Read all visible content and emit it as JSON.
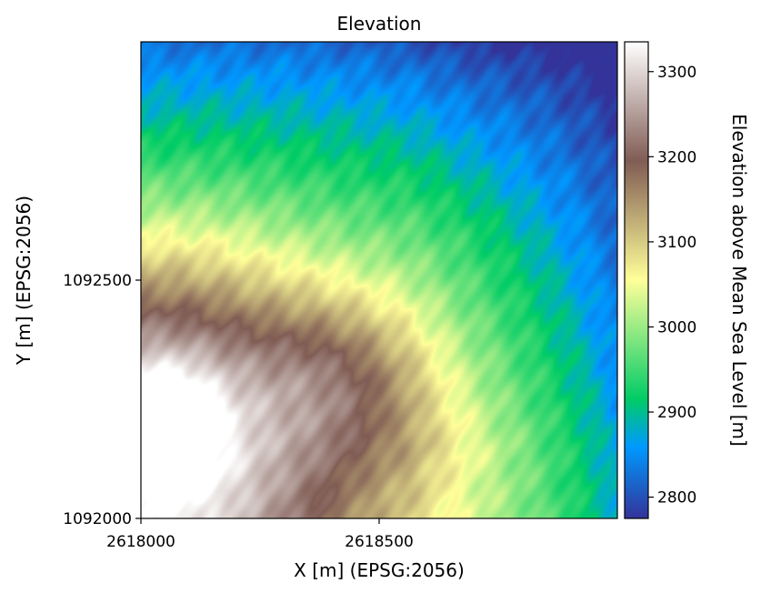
{
  "chart_data": {
    "type": "heatmap",
    "title": "Elevation",
    "xlabel": "X [m] (EPSG:2056)",
    "ylabel": "Y [m] (EPSG:2056)",
    "xlim": [
      2618000,
      2619000
    ],
    "ylim": [
      1092000,
      1093000
    ],
    "x_ticks": [
      {
        "value": 2618000,
        "label": "2618000"
      },
      {
        "value": 2618500,
        "label": "2618500"
      }
    ],
    "y_ticks": [
      {
        "value": 1092000,
        "label": "1092000"
      },
      {
        "value": 1092500,
        "label": "1092500"
      }
    ],
    "colormap": "terrain",
    "colorbar": {
      "label": "Elevation above Mean Sea Level [m]",
      "range": [
        2775,
        3335
      ],
      "ticks": [
        {
          "value": 2800,
          "label": "2800"
        },
        {
          "value": 2900,
          "label": "2900"
        },
        {
          "value": 3000,
          "label": "3000"
        },
        {
          "value": 3100,
          "label": "3100"
        },
        {
          "value": 3200,
          "label": "3200"
        },
        {
          "value": 3300,
          "label": "3300"
        }
      ]
    }
  }
}
